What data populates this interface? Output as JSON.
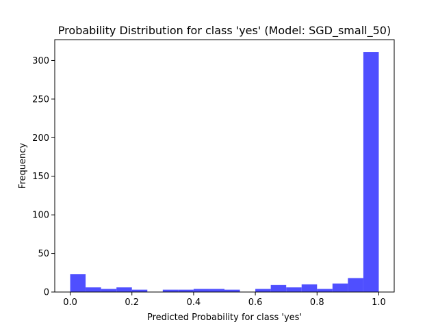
{
  "chart_data": {
    "type": "bar",
    "title": "Probability Distribution for class 'yes' (Model: SGD_small_50)",
    "xlabel": "Predicted Probability for class 'yes'",
    "ylabel": "Frequency",
    "xlim": [
      -0.05,
      1.05
    ],
    "ylim": [
      0,
      327
    ],
    "xticks": [
      0.0,
      0.2,
      0.4,
      0.6,
      0.8,
      1.0
    ],
    "xtick_labels": [
      "0.0",
      "0.2",
      "0.4",
      "0.6",
      "0.8",
      "1.0"
    ],
    "yticks": [
      0,
      50,
      100,
      150,
      200,
      250,
      300
    ],
    "ytick_labels": [
      "0",
      "50",
      "100",
      "150",
      "200",
      "250",
      "300"
    ],
    "bar_color": "#4f4fff",
    "bin_edges": [
      0.0,
      0.05,
      0.1,
      0.15,
      0.2,
      0.25,
      0.3,
      0.35,
      0.4,
      0.45,
      0.5,
      0.55,
      0.6,
      0.65,
      0.7,
      0.75,
      0.8,
      0.85,
      0.9,
      0.95,
      1.0
    ],
    "values": [
      23,
      6,
      4,
      6,
      3,
      0,
      3,
      3,
      4,
      4,
      3,
      0,
      4,
      9,
      6,
      10,
      4,
      11,
      18,
      311
    ],
    "grid": false,
    "legend": "none"
  }
}
